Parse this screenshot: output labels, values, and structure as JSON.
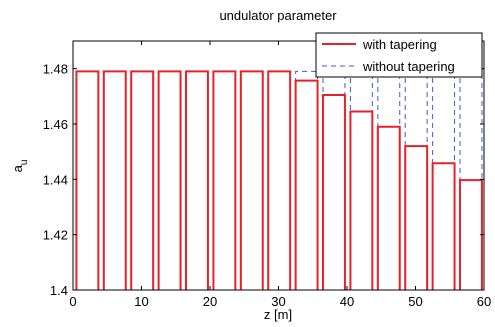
{
  "chart_data": {
    "type": "line",
    "title": "undulator parameter",
    "xlabel": "z [m]",
    "ylabel_main": "a",
    "ylabel_sub": "u",
    "xlim": [
      0,
      60
    ],
    "ylim": [
      1.4,
      1.49
    ],
    "x_ticks": [
      0,
      10,
      20,
      30,
      40,
      50,
      60
    ],
    "x_tick_labels": [
      "0",
      "10",
      "20",
      "30",
      "40",
      "50",
      "60"
    ],
    "y_ticks": [
      1.4,
      1.42,
      1.44,
      1.46,
      1.48
    ],
    "y_tick_labels": [
      "1.4",
      "1.42",
      "1.44",
      "1.46",
      "1.48"
    ],
    "grid": false,
    "legend_position": "top-right",
    "segments": [
      {
        "z_start": 0.5,
        "z_end": 3.7
      },
      {
        "z_start": 4.5,
        "z_end": 7.7
      },
      {
        "z_start": 8.5,
        "z_end": 11.7
      },
      {
        "z_start": 12.5,
        "z_end": 15.7
      },
      {
        "z_start": 16.5,
        "z_end": 19.7
      },
      {
        "z_start": 20.5,
        "z_end": 23.7
      },
      {
        "z_start": 24.5,
        "z_end": 27.7
      },
      {
        "z_start": 28.5,
        "z_end": 31.7
      },
      {
        "z_start": 32.5,
        "z_end": 35.7
      },
      {
        "z_start": 36.5,
        "z_end": 39.7
      },
      {
        "z_start": 40.5,
        "z_end": 43.7
      },
      {
        "z_start": 44.5,
        "z_end": 47.7
      },
      {
        "z_start": 48.5,
        "z_end": 51.7
      },
      {
        "z_start": 52.5,
        "z_end": 55.7
      },
      {
        "z_start": 56.5,
        "z_end": 59.7
      }
    ],
    "series": [
      {
        "name": "with tapering",
        "color": "#e8202a",
        "style": "solid",
        "values": [
          1.479,
          1.479,
          1.479,
          1.479,
          1.479,
          1.479,
          1.479,
          1.479,
          1.4757,
          1.4705,
          1.4645,
          1.459,
          1.452,
          1.4458,
          1.4397
        ]
      },
      {
        "name": "without tapering",
        "color": "#3a5ec8",
        "style": "dashed",
        "values": [
          1.479,
          1.479,
          1.479,
          1.479,
          1.479,
          1.479,
          1.479,
          1.479,
          1.479,
          1.479,
          1.479,
          1.479,
          1.479,
          1.479,
          1.479
        ]
      }
    ]
  }
}
